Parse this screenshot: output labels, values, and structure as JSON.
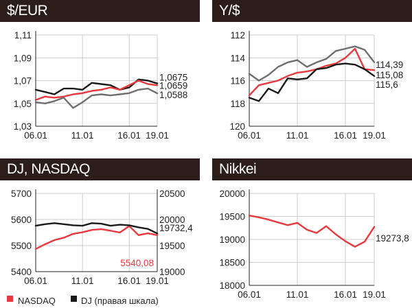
{
  "colors": {
    "header_bg": "#2b1d1a",
    "red": "#e8383d",
    "black": "#1a1a1a",
    "gray": "#6d6e71"
  },
  "legend": {
    "nasdaq": "NASDAQ",
    "dj": "DJ (правая шкала)"
  },
  "chart_data": [
    {
      "type": "line",
      "title": "$/EUR",
      "x": [
        "06.01",
        "07.01",
        "08.01",
        "09.01",
        "10.01",
        "11.01",
        "12.01",
        "13.01",
        "14.01",
        "15.01",
        "16.01",
        "17.01",
        "18.01",
        "19.01"
      ],
      "x_ticks": [
        "06.01",
        "11.01",
        "16.01",
        "19.01"
      ],
      "y_ticks": [
        "1,11",
        "1,09",
        "1,07",
        "1,05",
        "1,03"
      ],
      "ylim": [
        1.03,
        1.11
      ],
      "grid": true,
      "series": [
        {
          "color": "#1a1a1a",
          "values": [
            1.062,
            1.06,
            1.058,
            1.063,
            1.063,
            1.062,
            1.068,
            1.067,
            1.066,
            1.062,
            1.064,
            1.071,
            1.07,
            1.0675
          ]
        },
        {
          "color": "#e8383d",
          "values": [
            1.053,
            1.056,
            1.055,
            1.056,
            1.058,
            1.059,
            1.061,
            1.062,
            1.064,
            1.062,
            1.066,
            1.07,
            1.067,
            1.0659
          ]
        },
        {
          "color": "#6d6e71",
          "values": [
            1.051,
            1.05,
            1.052,
            1.055,
            1.046,
            1.051,
            1.057,
            1.058,
            1.057,
            1.058,
            1.059,
            1.062,
            1.063,
            1.0588
          ]
        }
      ],
      "end_labels": [
        "1,0675",
        "1,0659",
        "1,0588"
      ]
    },
    {
      "type": "line",
      "title": "Y/$",
      "inverted": true,
      "x": [
        "06.01",
        "07.01",
        "08.01",
        "09.01",
        "10.01",
        "11.01",
        "12.01",
        "13.01",
        "14.01",
        "15.01",
        "16.01",
        "17.01",
        "18.01",
        "19.01"
      ],
      "x_ticks": [
        "06.01",
        "11.01",
        "16.01",
        "19.01"
      ],
      "y_ticks": [
        "112",
        "114",
        "116",
        "118",
        "120"
      ],
      "ylim": [
        112,
        120
      ],
      "grid": true,
      "series": [
        {
          "color": "#6d6e71",
          "values": [
            115.4,
            116.0,
            115.5,
            114.8,
            114.4,
            114.2,
            114.8,
            114.4,
            114.1,
            113.4,
            113.2,
            113.0,
            113.3,
            114.39
          ]
        },
        {
          "color": "#e8383d",
          "values": [
            117.3,
            116.4,
            116.2,
            116.0,
            115.6,
            115.3,
            115.2,
            115.0,
            114.7,
            114.5,
            114.0,
            113.2,
            115.0,
            115.08
          ]
        },
        {
          "color": "#1a1a1a",
          "values": [
            117.5,
            117.8,
            116.7,
            117.1,
            115.8,
            115.9,
            115.8,
            115.0,
            114.9,
            114.6,
            114.5,
            114.6,
            115.0,
            115.6
          ]
        }
      ],
      "end_labels": [
        "114,39",
        "115,08",
        "115,6"
      ]
    },
    {
      "type": "line",
      "title": "DJ, NASDAQ",
      "x": [
        "06.01",
        "07.01",
        "08.01",
        "09.01",
        "10.01",
        "11.01",
        "12.01",
        "13.01",
        "14.01",
        "15.01",
        "16.01",
        "17.01",
        "18.01",
        "19.01"
      ],
      "x_ticks": [
        "06.01",
        "11.01",
        "16.01",
        "19.01"
      ],
      "y_ticks_left": [
        "5700",
        "5600",
        "5500",
        "5400"
      ],
      "ylim_left": [
        5400,
        5700
      ],
      "y_ticks_right": [
        "20500",
        "20000",
        "19500",
        "19000"
      ],
      "ylim_right": [
        19000,
        20500
      ],
      "grid": true,
      "series": [
        {
          "name": "NASDAQ",
          "axis": "left",
          "color": "#e8383d",
          "values": [
            5487,
            5505,
            5521,
            5530,
            5545,
            5551,
            5560,
            5563,
            5557,
            5550,
            5575,
            5540,
            5547,
            5540.08
          ]
        },
        {
          "name": "DJ (правая шкала)",
          "axis": "right",
          "color": "#1a1a1a",
          "values": [
            19880,
            19910,
            19930,
            19910,
            19890,
            19880,
            19930,
            19920,
            19880,
            19900,
            19890,
            19850,
            19820,
            19732.4
          ]
        }
      ],
      "end_labels": [
        "19732,4",
        "5540,08"
      ]
    },
    {
      "type": "line",
      "title": "Nikkei",
      "x": [
        "06.01",
        "07.01",
        "08.01",
        "09.01",
        "10.01",
        "11.01",
        "12.01",
        "13.01",
        "14.01",
        "15.01",
        "16.01",
        "17.01",
        "18.01",
        "19.01"
      ],
      "x_ticks": [
        "06.01",
        "11.01",
        "16.01",
        "19.01"
      ],
      "y_ticks": [
        "20000",
        "19500",
        "19000",
        "18500",
        "18000"
      ],
      "ylim": [
        18000,
        20000
      ],
      "grid": true,
      "series": [
        {
          "color": "#e8383d",
          "values": [
            19520,
            19480,
            19430,
            19370,
            19310,
            19360,
            19210,
            19140,
            19290,
            19110,
            18960,
            18840,
            18950,
            19273.8
          ]
        }
      ],
      "end_labels": [
        "19273,8"
      ]
    }
  ]
}
